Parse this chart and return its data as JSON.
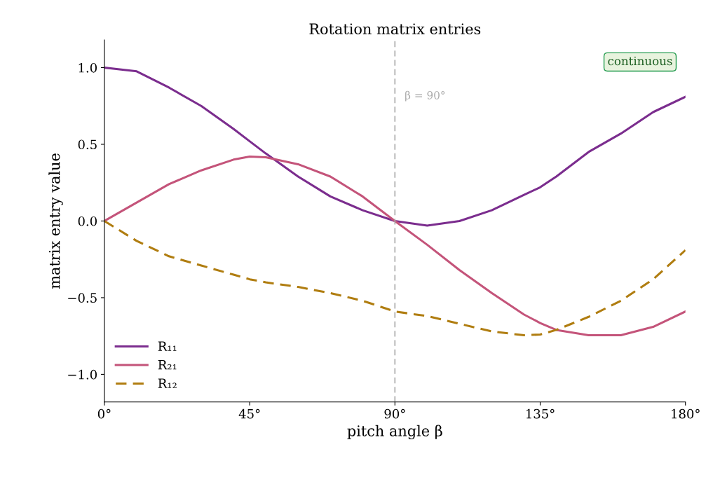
{
  "chart_data": {
    "type": "line",
    "title": "Rotation matrix entries",
    "xlabel": "pitch angle β",
    "ylabel": "matrix entry value",
    "x": [
      0,
      10,
      20,
      30,
      40,
      45,
      50,
      60,
      70,
      80,
      90,
      100,
      110,
      120,
      130,
      135,
      140,
      150,
      160,
      170,
      180
    ],
    "series": [
      {
        "name": "R₁₁",
        "color": "#7b2d8e",
        "line_style": "solid",
        "values": [
          1.0,
          0.976,
          0.87,
          0.75,
          0.6,
          0.52,
          0.44,
          0.29,
          0.16,
          0.07,
          0.0,
          -0.03,
          0.0,
          0.07,
          0.17,
          0.22,
          0.29,
          0.45,
          0.57,
          0.71,
          0.81
        ]
      },
      {
        "name": "R₂₁",
        "color": "#c4547a",
        "line_style": "solid",
        "values": [
          0.0,
          0.12,
          0.24,
          0.33,
          0.4,
          0.42,
          0.415,
          0.37,
          0.29,
          0.16,
          0.0,
          -0.155,
          -0.32,
          -0.47,
          -0.61,
          -0.665,
          -0.71,
          -0.745,
          -0.745,
          -0.69,
          -0.59
        ]
      },
      {
        "name": "R₁₂",
        "color": "#b07d10",
        "line_style": "dashed",
        "values": [
          0.0,
          -0.13,
          -0.23,
          -0.29,
          -0.35,
          -0.38,
          -0.4,
          -0.43,
          -0.47,
          -0.52,
          -0.59,
          -0.62,
          -0.67,
          -0.72,
          -0.745,
          -0.74,
          -0.71,
          -0.625,
          -0.52,
          -0.38,
          -0.19
        ]
      }
    ],
    "xlim": [
      0,
      180
    ],
    "xticks": [
      {
        "value": 0,
        "label": "0°"
      },
      {
        "value": 45,
        "label": "45°"
      },
      {
        "value": 90,
        "label": "90°"
      },
      {
        "value": 135,
        "label": "135°"
      },
      {
        "value": 180,
        "label": "180°"
      }
    ],
    "ylim": [
      -1.18,
      1.18
    ],
    "yticks": [
      {
        "value": -1.0,
        "label": "−1.0"
      },
      {
        "value": -0.5,
        "label": "−0.5"
      },
      {
        "value": 0.0,
        "label": "0.0"
      },
      {
        "value": 0.5,
        "label": "0.5"
      },
      {
        "value": 1.0,
        "label": "1.0"
      }
    ],
    "ref_lines": [
      {
        "axis": "x",
        "value": 90,
        "label": "β = 90°",
        "color": "#aaaaaa",
        "line_style": "dashed"
      }
    ],
    "annotations": [
      "continuous"
    ],
    "legend": "lower left",
    "grid": false,
    "marker": "none"
  }
}
